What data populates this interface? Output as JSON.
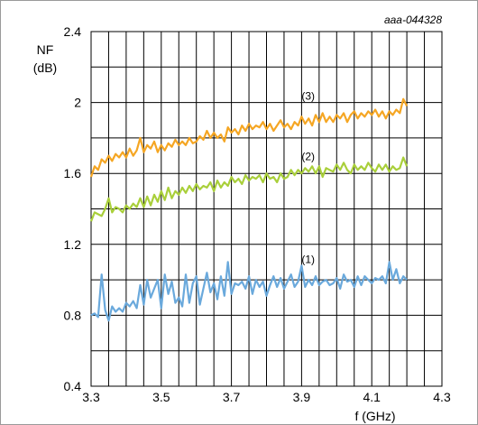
{
  "chart_data": {
    "type": "line",
    "code": "aaa-044328",
    "ylabel_lines": [
      "NF",
      "(dB)"
    ],
    "xlabel": "f (GHz)",
    "xlim": [
      3.3,
      4.3
    ],
    "ylim": [
      0.4,
      2.4
    ],
    "x_ticks": [
      3.3,
      3.5,
      3.7,
      3.9,
      4.1,
      4.3
    ],
    "x_tick_labels": [
      "3.3",
      "3.5",
      "3.7",
      "3.9",
      "4.1",
      "4.3"
    ],
    "y_ticks": [
      0.4,
      0.8,
      1.2,
      1.6,
      2.0,
      2.4
    ],
    "y_tick_labels": [
      "0.4",
      "0.8",
      "1.2",
      "1.6",
      "2",
      "2.4"
    ],
    "grid_x_step": 0.05,
    "grid_y_step": 0.2,
    "grid": true,
    "series": [
      {
        "name": "(1)",
        "color": "#6aa9dc",
        "label_at": [
          3.9,
          1.08
        ],
        "x": [
          3.3,
          3.31,
          3.32,
          3.33,
          3.34,
          3.35,
          3.36,
          3.37,
          3.38,
          3.39,
          3.4,
          3.41,
          3.42,
          3.43,
          3.44,
          3.45,
          3.46,
          3.47,
          3.48,
          3.49,
          3.5,
          3.51,
          3.52,
          3.53,
          3.54,
          3.55,
          3.56,
          3.57,
          3.58,
          3.59,
          3.6,
          3.61,
          3.62,
          3.63,
          3.64,
          3.65,
          3.66,
          3.67,
          3.68,
          3.69,
          3.7,
          3.71,
          3.72,
          3.73,
          3.74,
          3.75,
          3.76,
          3.77,
          3.78,
          3.79,
          3.8,
          3.81,
          3.82,
          3.83,
          3.84,
          3.85,
          3.86,
          3.87,
          3.88,
          3.89,
          3.9,
          3.91,
          3.92,
          3.93,
          3.94,
          3.95,
          3.96,
          3.97,
          3.98,
          3.99,
          4.0,
          4.01,
          4.02,
          4.03,
          4.04,
          4.05,
          4.06,
          4.07,
          4.08,
          4.09,
          4.1,
          4.11,
          4.12,
          4.13,
          4.14,
          4.15,
          4.16,
          4.17,
          4.18,
          4.19,
          4.2
        ],
        "y": [
          0.8,
          0.81,
          0.79,
          1.03,
          0.83,
          0.77,
          0.85,
          0.82,
          0.84,
          0.82,
          0.87,
          0.85,
          0.88,
          0.84,
          0.97,
          0.86,
          1.0,
          0.9,
          0.95,
          1.0,
          0.84,
          1.03,
          0.92,
          0.99,
          0.87,
          0.9,
          0.85,
          1.03,
          0.87,
          0.98,
          1.02,
          0.86,
          0.95,
          1.04,
          0.93,
          0.98,
          0.89,
          1.02,
          0.91,
          1.1,
          0.92,
          0.98,
          0.97,
          0.99,
          0.95,
          1.02,
          0.92,
          1.0,
          0.96,
          0.99,
          0.91,
          0.97,
          1.02,
          0.96,
          1.01,
          0.95,
          0.99,
          1.03,
          0.96,
          0.99,
          1.08,
          0.96,
          1.0,
          0.97,
          1.02,
          0.97,
          0.99,
          1.0,
          0.97,
          0.98,
          1.01,
          0.95,
          1.03,
          0.99,
          1.0,
          0.96,
          1.02,
          0.97,
          1.02,
          1.0,
          0.98,
          1.01,
          1.0,
          1.02,
          0.98,
          1.1,
          1.0,
          1.06,
          0.98,
          1.02,
          1.0
        ]
      },
      {
        "name": "(2)",
        "color": "#a9cf3a",
        "label_at": [
          3.9,
          1.66
        ],
        "x": [
          3.3,
          3.31,
          3.32,
          3.33,
          3.34,
          3.35,
          3.36,
          3.37,
          3.38,
          3.39,
          3.4,
          3.41,
          3.42,
          3.43,
          3.44,
          3.45,
          3.46,
          3.47,
          3.48,
          3.49,
          3.5,
          3.51,
          3.52,
          3.53,
          3.54,
          3.55,
          3.56,
          3.57,
          3.58,
          3.59,
          3.6,
          3.61,
          3.62,
          3.63,
          3.64,
          3.65,
          3.66,
          3.67,
          3.68,
          3.69,
          3.7,
          3.71,
          3.72,
          3.73,
          3.74,
          3.75,
          3.76,
          3.77,
          3.78,
          3.79,
          3.8,
          3.81,
          3.82,
          3.83,
          3.84,
          3.85,
          3.86,
          3.87,
          3.88,
          3.89,
          3.9,
          3.91,
          3.92,
          3.93,
          3.94,
          3.95,
          3.96,
          3.97,
          3.98,
          3.99,
          4.0,
          4.01,
          4.02,
          4.03,
          4.04,
          4.05,
          4.06,
          4.07,
          4.08,
          4.09,
          4.1,
          4.11,
          4.12,
          4.13,
          4.14,
          4.15,
          4.16,
          4.17,
          4.18,
          4.19,
          4.2
        ],
        "y": [
          1.33,
          1.38,
          1.37,
          1.36,
          1.4,
          1.46,
          1.38,
          1.41,
          1.4,
          1.38,
          1.42,
          1.4,
          1.43,
          1.41,
          1.46,
          1.41,
          1.47,
          1.42,
          1.48,
          1.44,
          1.5,
          1.45,
          1.52,
          1.46,
          1.5,
          1.48,
          1.52,
          1.49,
          1.53,
          1.5,
          1.54,
          1.51,
          1.53,
          1.52,
          1.55,
          1.5,
          1.56,
          1.52,
          1.55,
          1.53,
          1.58,
          1.55,
          1.57,
          1.54,
          1.59,
          1.56,
          1.58,
          1.57,
          1.59,
          1.55,
          1.6,
          1.57,
          1.58,
          1.55,
          1.6,
          1.57,
          1.58,
          1.62,
          1.59,
          1.62,
          1.6,
          1.63,
          1.61,
          1.64,
          1.6,
          1.64,
          1.58,
          1.63,
          1.62,
          1.61,
          1.65,
          1.62,
          1.66,
          1.62,
          1.6,
          1.65,
          1.62,
          1.64,
          1.62,
          1.66,
          1.63,
          1.61,
          1.65,
          1.62,
          1.65,
          1.61,
          1.64,
          1.62,
          1.63,
          1.69,
          1.64
        ]
      },
      {
        "name": "(3)",
        "color": "#f5a623",
        "label_at": [
          3.9,
          2.0
        ],
        "x": [
          3.3,
          3.31,
          3.32,
          3.33,
          3.34,
          3.35,
          3.36,
          3.37,
          3.38,
          3.39,
          3.4,
          3.41,
          3.42,
          3.43,
          3.44,
          3.45,
          3.46,
          3.47,
          3.48,
          3.49,
          3.5,
          3.51,
          3.52,
          3.53,
          3.54,
          3.55,
          3.56,
          3.57,
          3.58,
          3.59,
          3.6,
          3.61,
          3.62,
          3.63,
          3.64,
          3.65,
          3.66,
          3.67,
          3.68,
          3.69,
          3.7,
          3.71,
          3.72,
          3.73,
          3.74,
          3.75,
          3.76,
          3.77,
          3.78,
          3.79,
          3.8,
          3.81,
          3.82,
          3.83,
          3.84,
          3.85,
          3.86,
          3.87,
          3.88,
          3.89,
          3.9,
          3.91,
          3.92,
          3.93,
          3.94,
          3.95,
          3.96,
          3.97,
          3.98,
          3.99,
          4.0,
          4.01,
          4.02,
          4.03,
          4.04,
          4.05,
          4.06,
          4.07,
          4.08,
          4.09,
          4.1,
          4.11,
          4.12,
          4.13,
          4.14,
          4.15,
          4.16,
          4.17,
          4.18,
          4.19,
          4.2
        ],
        "y": [
          1.58,
          1.64,
          1.62,
          1.68,
          1.66,
          1.7,
          1.67,
          1.71,
          1.69,
          1.72,
          1.69,
          1.74,
          1.7,
          1.73,
          1.8,
          1.72,
          1.76,
          1.74,
          1.78,
          1.72,
          1.76,
          1.73,
          1.77,
          1.75,
          1.79,
          1.76,
          1.78,
          1.76,
          1.8,
          1.77,
          1.78,
          1.81,
          1.79,
          1.84,
          1.8,
          1.83,
          1.8,
          1.82,
          1.78,
          1.86,
          1.83,
          1.85,
          1.82,
          1.87,
          1.84,
          1.88,
          1.85,
          1.87,
          1.86,
          1.89,
          1.85,
          1.88,
          1.84,
          1.87,
          1.9,
          1.86,
          1.88,
          1.85,
          1.89,
          1.87,
          1.92,
          1.88,
          1.91,
          1.87,
          1.93,
          1.89,
          1.94,
          1.89,
          1.92,
          1.89,
          1.93,
          1.91,
          1.94,
          1.89,
          1.93,
          1.95,
          1.91,
          1.94,
          1.92,
          1.95,
          1.93,
          1.96,
          1.92,
          1.95,
          1.91,
          1.95,
          1.93,
          1.96,
          1.94,
          2.02,
          1.98
        ]
      }
    ]
  }
}
